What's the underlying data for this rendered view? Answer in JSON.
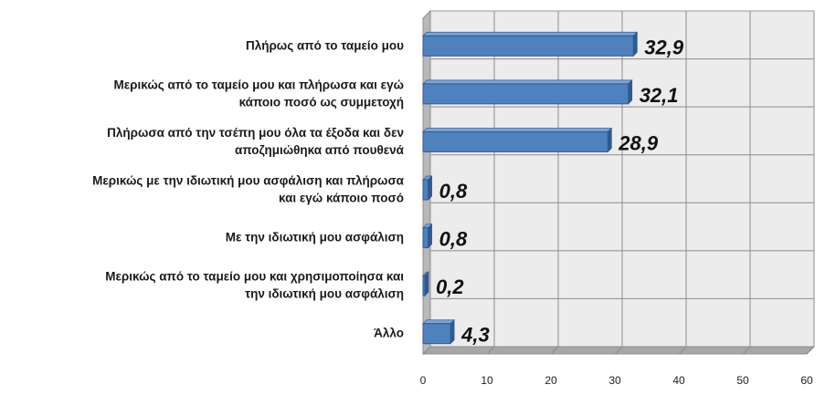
{
  "chart_data": {
    "type": "bar",
    "orientation": "horizontal",
    "categories": [
      [
        "Πλήρως από το ταμείο μου"
      ],
      [
        "Μερικώς από το ταμείο μου και πλήρωσα και εγώ",
        "κάποιο ποσό ως συμμετοχή"
      ],
      [
        "Πλήρωσα από την τσέπη μου όλα τα έξοδα και δεν",
        "αποζημιώθηκα από πουθενά"
      ],
      [
        "Μερικώς με την ιδιωτική μου ασφάλιση και πλήρωσα",
        "και εγώ κάποιο ποσό"
      ],
      [
        "Με την ιδιωτική μου ασφάλιση"
      ],
      [
        "Μερικώς από το ταμείο μου και χρησιμοποίησα και",
        "την ιδιωτική μου ασφάλιση"
      ],
      [
        "Άλλο"
      ]
    ],
    "values": [
      32.9,
      32.1,
      28.9,
      0.8,
      0.8,
      0.2,
      4.3
    ],
    "value_labels": [
      "32,9",
      "32,1",
      "28,9",
      "0,8",
      "0,8",
      "0,2",
      "4,3"
    ],
    "xlim": [
      0,
      60
    ],
    "xticks": [
      0,
      10,
      20,
      30,
      40,
      50,
      60
    ],
    "title": "",
    "xlabel": "",
    "ylabel": "",
    "grid": true,
    "legend": "none",
    "colors": {
      "bar": "#4f81bd",
      "bar_dark": "#2f5a8f",
      "plot_bg": "#ececec",
      "side_wall": "#b8b8b8",
      "floor": "#a6a6a6",
      "grid": "#8c8c8c"
    }
  }
}
